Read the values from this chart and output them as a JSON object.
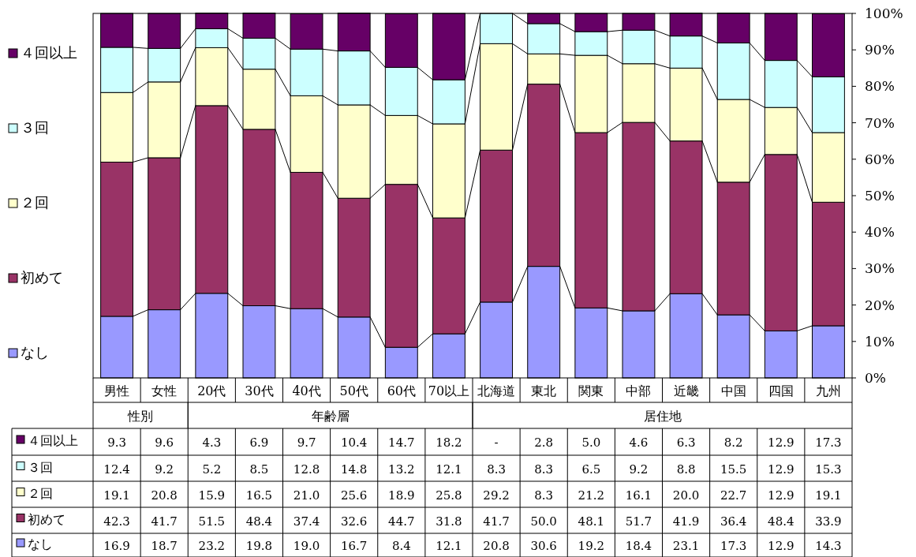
{
  "chart_data": {
    "type": "bar",
    "stacked": true,
    "legend": "left",
    "grid": false,
    "categories": [
      "男性",
      "女性",
      "20代",
      "30代",
      "40代",
      "50代",
      "60代",
      "70以上",
      "北海道",
      "東北",
      "関東",
      "中部",
      "近畿",
      "中国",
      "四国",
      "九州"
    ],
    "annotations": [
      "性別",
      "年齢層",
      "居住地"
    ],
    "ylim": [
      0,
      100
    ],
    "yticks": [
      {
        "value": 0,
        "label": "0%"
      },
      {
        "value": 10,
        "label": "10%"
      },
      {
        "value": 20,
        "label": "20%"
      },
      {
        "value": 30,
        "label": "30%"
      },
      {
        "value": 40,
        "label": "40%"
      },
      {
        "value": 50,
        "label": "50%"
      },
      {
        "value": 60,
        "label": "60%"
      },
      {
        "value": 70,
        "label": "70%"
      },
      {
        "value": 80,
        "label": "80%"
      },
      {
        "value": 90,
        "label": "90%"
      },
      {
        "value": 100,
        "label": "100%"
      }
    ],
    "series": [
      {
        "name": "なし",
        "color": "#9999ff",
        "values": [
          16.9,
          18.7,
          23.2,
          19.8,
          19.0,
          16.7,
          8.4,
          12.1,
          20.8,
          30.6,
          19.2,
          18.4,
          23.1,
          17.3,
          12.9,
          14.3
        ],
        "value_labels": [
          "16.9",
          "18.7",
          "23.2",
          "19.8",
          "19.0",
          "16.7",
          "8.4",
          "12.1",
          "20.8",
          "30.6",
          "19.2",
          "18.4",
          "23.1",
          "17.3",
          "12.9",
          "14.3"
        ]
      },
      {
        "name": "初めて",
        "color": "#993366",
        "values": [
          42.3,
          41.7,
          51.5,
          48.4,
          37.4,
          32.6,
          44.7,
          31.8,
          41.7,
          50.0,
          48.1,
          51.7,
          41.9,
          36.4,
          48.4,
          33.9
        ],
        "value_labels": [
          "42.3",
          "41.7",
          "51.5",
          "48.4",
          "37.4",
          "32.6",
          "44.7",
          "31.8",
          "41.7",
          "50.0",
          "48.1",
          "51.7",
          "41.9",
          "36.4",
          "48.4",
          "33.9"
        ]
      },
      {
        "name": "２回",
        "color": "#ffffcc",
        "values": [
          19.1,
          20.8,
          15.9,
          16.5,
          21.0,
          25.6,
          18.9,
          25.8,
          29.2,
          8.3,
          21.2,
          16.1,
          20.0,
          22.7,
          12.9,
          19.1
        ],
        "value_labels": [
          "19.1",
          "20.8",
          "15.9",
          "16.5",
          "21.0",
          "25.6",
          "18.9",
          "25.8",
          "29.2",
          "8.3",
          "21.2",
          "16.1",
          "20.0",
          "22.7",
          "12.9",
          "19.1"
        ]
      },
      {
        "name": "３回",
        "color": "#ccffff",
        "values": [
          12.4,
          9.2,
          5.2,
          8.5,
          12.8,
          14.8,
          13.2,
          12.1,
          8.3,
          8.3,
          6.5,
          9.2,
          8.8,
          15.5,
          12.9,
          15.3
        ],
        "value_labels": [
          "12.4",
          "9.2",
          "5.2",
          "8.5",
          "12.8",
          "14.8",
          "13.2",
          "12.1",
          "8.3",
          "8.3",
          "6.5",
          "9.2",
          "8.8",
          "15.5",
          "12.9",
          "15.3"
        ]
      },
      {
        "name": "４回以上",
        "color": "#660066",
        "values": [
          9.3,
          9.6,
          4.3,
          6.9,
          9.7,
          10.4,
          14.7,
          18.2,
          null,
          2.8,
          5.0,
          4.6,
          6.3,
          8.2,
          12.9,
          17.3
        ],
        "value_labels": [
          "9.3",
          "9.6",
          "4.3",
          "6.9",
          "9.7",
          "10.4",
          "14.7",
          "18.2",
          "-",
          "2.8",
          "5.0",
          "4.6",
          "6.3",
          "8.2",
          "12.9",
          "17.3"
        ]
      }
    ]
  }
}
